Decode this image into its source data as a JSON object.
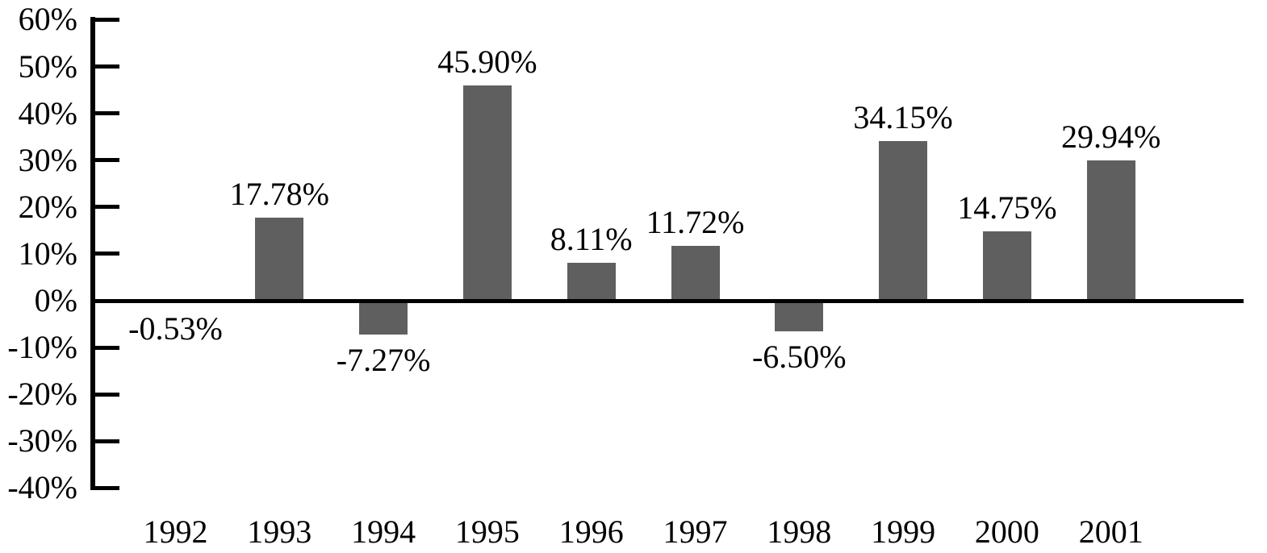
{
  "chart_data": {
    "type": "bar",
    "title": "",
    "xlabel": "",
    "ylabel": "",
    "categories": [
      "1992",
      "1993",
      "1994",
      "1995",
      "1996",
      "1997",
      "1998",
      "1999",
      "2000",
      "2001"
    ],
    "values": [
      -0.53,
      17.78,
      -7.27,
      45.9,
      8.11,
      11.72,
      -6.5,
      34.15,
      14.75,
      29.94
    ],
    "data_labels": [
      "-0.53%",
      "17.78%",
      "-7.27%",
      "45.90%",
      "8.11%",
      "11.72%",
      "-6.50%",
      "34.15%",
      "14.75%",
      "29.94%"
    ],
    "y_tick_labels": [
      "60%",
      "50%",
      "40%",
      "30%",
      "20%",
      "10%",
      "0%",
      "-10%",
      "-20%",
      "-30%",
      "-40%"
    ],
    "y_tick_values": [
      60,
      50,
      40,
      30,
      20,
      10,
      0,
      -10,
      -20,
      -30,
      -40
    ],
    "ylim": [
      -40,
      60
    ],
    "grid": false,
    "legend_position": "none",
    "bar_color": "#5F5F5F",
    "axis_color": "#000000",
    "text_color": "#000000"
  }
}
